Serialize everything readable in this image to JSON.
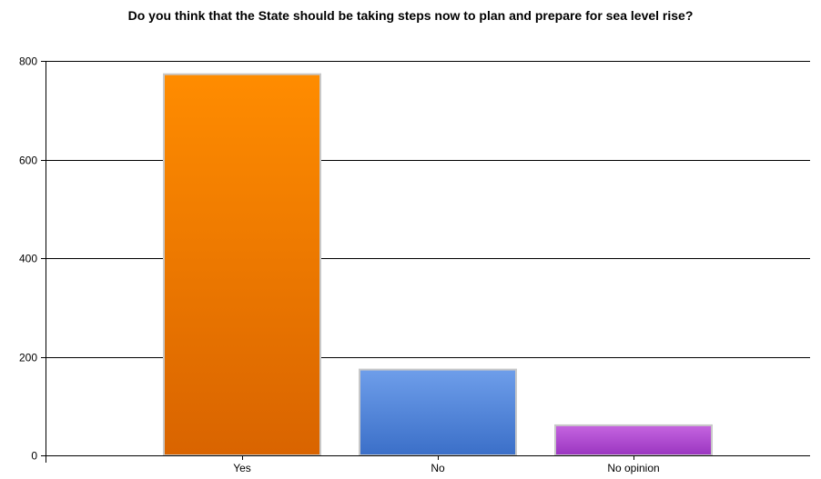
{
  "chart_data": {
    "type": "bar",
    "title": "Do you think that the State should be taking steps now to plan and prepare for sea level rise?",
    "categories": [
      "Yes",
      "No",
      "No opinion"
    ],
    "values": [
      773,
      174,
      61
    ],
    "ylim": [
      0,
      800
    ],
    "yticks": [
      0,
      200,
      400,
      600,
      800
    ],
    "grid": true,
    "xlabel": "",
    "ylabel": "",
    "colors": [
      {
        "top": "#FF8C00",
        "bottom": "#D96400"
      },
      {
        "top": "#6E9EEA",
        "bottom": "#3B6FC8"
      },
      {
        "top": "#C565E0",
        "bottom": "#9A35C0"
      }
    ],
    "bar_border": "#C8C8C8"
  }
}
